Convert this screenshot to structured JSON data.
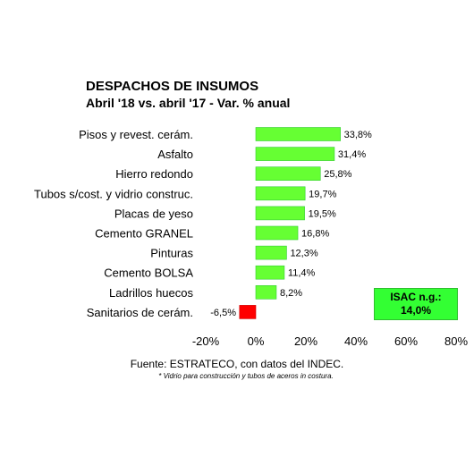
{
  "chart_data": {
    "type": "bar",
    "orientation": "horizontal",
    "title": "DESPACHOS DE INSUMOS",
    "subtitle": "Abril '18 vs. abril '17 - Var. % anual",
    "categories": [
      "Pisos y revest. cerám.",
      "Asfalto",
      "Hierro redondo",
      "Tubos s/cost. y vidrio construc.",
      "Placas de yeso",
      "Cemento GRANEL",
      "Pinturas",
      "Cemento BOLSA",
      "Ladrillos huecos",
      "Sanitarios de cerám."
    ],
    "values": [
      33.8,
      31.4,
      25.8,
      19.7,
      19.5,
      16.8,
      12.3,
      11.4,
      8.2,
      -6.5
    ],
    "value_labels": [
      "33,8%",
      "31,4%",
      "25,8%",
      "19,7%",
      "19,5%",
      "16,8%",
      "12,3%",
      "11,4%",
      "8,2%",
      "-6,5%"
    ],
    "xlim": [
      -20,
      80
    ],
    "xticks": [
      -20,
      0,
      20,
      40,
      60,
      80
    ],
    "xtick_labels": [
      "-20%",
      "0%",
      "20%",
      "40%",
      "60%",
      "80%"
    ],
    "grid": false,
    "colors": {
      "positive": "#66ff33",
      "positive_edge": "#33cc33",
      "negative": "#ff0000"
    }
  },
  "isac_box": {
    "line1": "ISAC n.g.:",
    "line2": "14,0%",
    "color": "#33ff33"
  },
  "source": "Fuente: ESTRATECO, con datos del INDEC.",
  "note": "* Vidrio para construcción y tubos de aceros in costura."
}
